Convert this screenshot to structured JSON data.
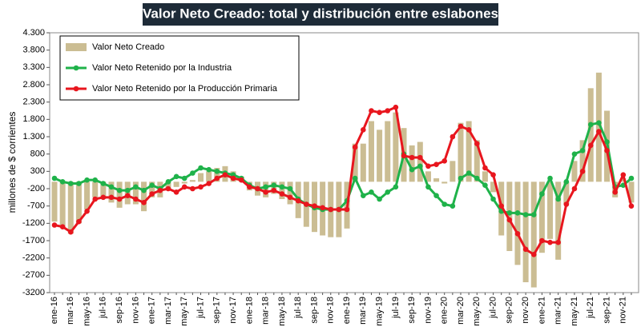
{
  "chart_data": {
    "type": "bar",
    "title": "Valor Neto Creado: total y distribución entre eslabones",
    "y_label": "millones de $ corrientes",
    "categories": [
      "ene-16",
      null,
      "mar-16",
      null,
      "may-16",
      null,
      "jul-16",
      null,
      "sep-16",
      null,
      "nov-16",
      null,
      "ene-17",
      null,
      "mar-17",
      null,
      "may-17",
      null,
      "jul-17",
      null,
      "sep-17",
      null,
      "nov-17",
      null,
      "ene-18",
      null,
      "mar-18",
      null,
      "may-18",
      null,
      "jul-18",
      null,
      "sep-18",
      null,
      "nov-18",
      null,
      "ene-19",
      null,
      "mar-19",
      null,
      "may-19",
      null,
      "jul-19",
      null,
      "sep-19",
      null,
      "nov-19",
      null,
      "ene-20",
      null,
      "mar-20",
      null,
      "may-20",
      null,
      "jul-20",
      null,
      "sep-20",
      null,
      "nov-20",
      null,
      "ene-21",
      null,
      "mar-21",
      null,
      "may-21",
      null,
      "jul-21",
      null,
      "sep-21",
      null,
      "nov-21",
      null
    ],
    "series": [
      {
        "name": "Valor Neto Creado",
        "type": "bar",
        "color": "#cbbd93",
        "values": [
          -1150,
          -1300,
          -1500,
          -1200,
          -800,
          -450,
          -500,
          -600,
          -750,
          -650,
          -650,
          -850,
          -450,
          -450,
          -200,
          -150,
          -50,
          50,
          250,
          300,
          400,
          450,
          300,
          150,
          -250,
          -400,
          -450,
          -350,
          -500,
          -650,
          -1050,
          -1300,
          -1450,
          -1550,
          -1600,
          -1600,
          -1350,
          1100,
          1100,
          1750,
          1500,
          1750,
          2000,
          1550,
          1050,
          1150,
          300,
          100,
          -50,
          600,
          1700,
          1750,
          1200,
          300,
          -300,
          -1550,
          -2000,
          -2400,
          -2900,
          -3050,
          -2050,
          -1650,
          -2250,
          -650,
          600,
          1200,
          2700,
          3150,
          2050,
          -450,
          100,
          -600
        ]
      },
      {
        "name": "Valor Neto Retenido por la Industria",
        "type": "line",
        "color": "#1fb24a",
        "values": [
          100,
          0,
          -50,
          -50,
          50,
          50,
          -50,
          -150,
          -250,
          -250,
          -150,
          -250,
          -100,
          -200,
          0,
          150,
          100,
          250,
          400,
          350,
          300,
          250,
          200,
          100,
          -100,
          -200,
          -150,
          -100,
          -150,
          -200,
          -500,
          -650,
          -750,
          -800,
          -800,
          -800,
          -550,
          100,
          -400,
          -300,
          -500,
          -300,
          -150,
          800,
          350,
          450,
          -150,
          -400,
          -650,
          -700,
          100,
          250,
          100,
          -100,
          -500,
          -850,
          -900,
          -900,
          -950,
          -950,
          -350,
          100,
          -500,
          0,
          800,
          900,
          1650,
          1700,
          1150,
          -150,
          -100,
          100
        ]
      },
      {
        "name": "Valor Neto Retenido por la Producción Primaria",
        "type": "line",
        "color": "#e8161e",
        "values": [
          -1250,
          -1300,
          -1450,
          -1150,
          -850,
          -500,
          -450,
          -450,
          -500,
          -400,
          -500,
          -600,
          -350,
          -250,
          -200,
          -300,
          -150,
          -200,
          -150,
          -50,
          100,
          200,
          100,
          50,
          -150,
          -200,
          -300,
          -250,
          -350,
          -450,
          -550,
          -650,
          -700,
          -750,
          -800,
          -800,
          -800,
          1000,
          1500,
          2050,
          2000,
          2050,
          2150,
          750,
          700,
          700,
          450,
          500,
          600,
          1300,
          1600,
          1500,
          1100,
          400,
          200,
          -700,
          -1100,
          -1500,
          -1950,
          -2100,
          -1700,
          -1750,
          -1750,
          -650,
          -200,
          300,
          1050,
          1450,
          900,
          -300,
          200,
          -700
        ]
      }
    ],
    "ylim": [
      -3200,
      4300
    ],
    "yticks": [
      -3200,
      -2700,
      -2200,
      -1700,
      -1200,
      -700,
      -200,
      300,
      {
        "value": 800,
        "label": "800"
      },
      {
        "value": 1300,
        "label": "1.300"
      },
      {
        "value": 1800,
        "label": "1.800"
      },
      {
        "value": 2300,
        "label": "2.300"
      },
      {
        "value": 2800,
        "label": "2.800"
      },
      {
        "value": 3300,
        "label": "3.300"
      },
      {
        "value": 3800,
        "label": "3.800"
      },
      {
        "value": 4300,
        "label": "4.300"
      }
    ],
    "yticks_note_format": null,
    "grid": false,
    "legend": "upper left"
  }
}
